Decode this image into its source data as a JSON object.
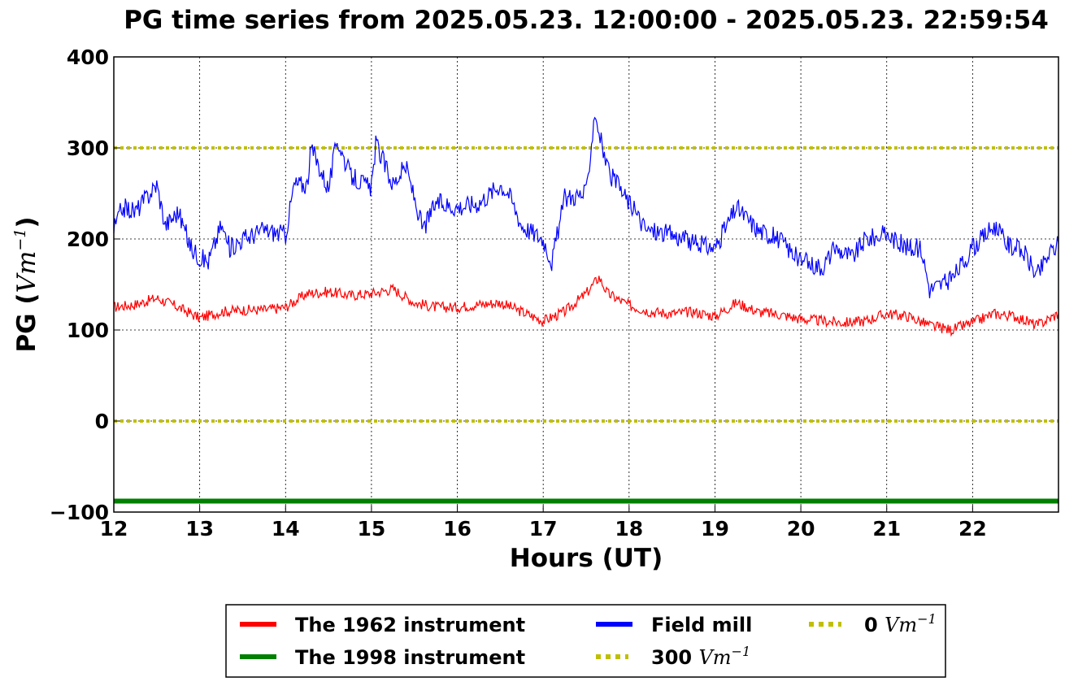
{
  "chart_data": {
    "type": "line",
    "title": "PG time series from 2025.05.23. 12:00:00 - 2025.05.23. 22:59:54",
    "xlabel": "Hours (UT)",
    "ylabel_text": "PG (",
    "ylabel_math": "Vm",
    "ylabel_exp": "−1",
    "ylabel_close": ")",
    "xlim": [
      12,
      23
    ],
    "ylim": [
      -100,
      400
    ],
    "xticks": [
      "12",
      "13",
      "14",
      "15",
      "16",
      "17",
      "18",
      "19",
      "20",
      "21",
      "22"
    ],
    "yticks": [
      "−100",
      "0",
      "100",
      "200",
      "300",
      "400"
    ],
    "grid": true,
    "legend_position": "below",
    "series": [
      {
        "name": "The 1962 instrument",
        "color": "#ff0000",
        "x": [
          12.0,
          12.25,
          12.5,
          12.75,
          13.0,
          13.25,
          13.5,
          13.75,
          14.0,
          14.25,
          14.5,
          14.75,
          15.0,
          15.25,
          15.5,
          15.75,
          16.0,
          16.25,
          16.5,
          16.75,
          17.0,
          17.25,
          17.5,
          17.65,
          17.75,
          18.0,
          18.25,
          18.5,
          18.75,
          19.0,
          19.25,
          19.5,
          19.75,
          20.0,
          20.25,
          20.5,
          20.75,
          21.0,
          21.25,
          21.5,
          21.75,
          22.0,
          22.25,
          22.5,
          22.75,
          23.0
        ],
        "y": [
          125,
          128,
          135,
          125,
          113,
          120,
          122,
          122,
          125,
          140,
          142,
          138,
          140,
          145,
          130,
          125,
          125,
          128,
          130,
          120,
          110,
          120,
          140,
          158,
          140,
          127,
          120,
          118,
          120,
          115,
          130,
          120,
          117,
          112,
          110,
          108,
          110,
          118,
          115,
          105,
          100,
          108,
          118,
          115,
          105,
          118
        ]
      },
      {
        "name": "The 1998 instrument",
        "color": "#008000",
        "x": [
          12,
          23
        ],
        "y": [
          -88,
          -88
        ]
      },
      {
        "name": "Field mill",
        "color": "#0000ff",
        "x": [
          12.0,
          12.1,
          12.25,
          12.5,
          12.6,
          12.75,
          12.9,
          13.0,
          13.1,
          13.25,
          13.35,
          13.5,
          13.75,
          14.0,
          14.1,
          14.25,
          14.3,
          14.5,
          14.6,
          14.75,
          15.0,
          15.05,
          15.25,
          15.4,
          15.6,
          15.75,
          16.0,
          16.25,
          16.5,
          16.6,
          16.75,
          17.0,
          17.1,
          17.25,
          17.5,
          17.6,
          17.75,
          18.0,
          18.2,
          18.5,
          18.75,
          19.0,
          19.25,
          19.5,
          19.75,
          20.0,
          20.25,
          20.4,
          20.6,
          20.75,
          21.0,
          21.25,
          21.4,
          21.5,
          21.75,
          22.0,
          22.25,
          22.4,
          22.6,
          22.75,
          22.9,
          23.0
        ],
        "y": [
          210,
          235,
          230,
          260,
          215,
          230,
          190,
          180,
          175,
          215,
          190,
          200,
          210,
          205,
          260,
          260,
          300,
          255,
          310,
          270,
          255,
          305,
          260,
          280,
          210,
          240,
          235,
          240,
          260,
          250,
          215,
          200,
          175,
          245,
          250,
          340,
          275,
          240,
          210,
          205,
          195,
          190,
          235,
          210,
          200,
          175,
          170,
          190,
          180,
          200,
          205,
          190,
          190,
          145,
          155,
          190,
          215,
          195,
          185,
          160,
          185,
          195
        ]
      },
      {
        "name": "300 Vm⁻¹",
        "color": "#bfbf00",
        "style": "dotted",
        "x": [
          12,
          23
        ],
        "y": [
          300,
          300
        ]
      },
      {
        "name": "0 Vm⁻¹",
        "color": "#bfbf00",
        "style": "dotted",
        "x": [
          12,
          23
        ],
        "y": [
          0,
          0
        ]
      }
    ],
    "legend": [
      {
        "label": "The 1962 instrument",
        "math": "",
        "color": "#ff0000",
        "style": "solid"
      },
      {
        "label": "The 1998 instrument",
        "math": "",
        "color": "#008000",
        "style": "solid"
      },
      {
        "label": "Field mill",
        "math": "",
        "color": "#0000ff",
        "style": "solid"
      },
      {
        "label": "300 ",
        "math": "Vm",
        "exp": "−1",
        "color": "#bfbf00",
        "style": "dotted"
      },
      {
        "label": "0 ",
        "math": "Vm",
        "exp": "−1",
        "color": "#bfbf00",
        "style": "dotted"
      }
    ]
  }
}
